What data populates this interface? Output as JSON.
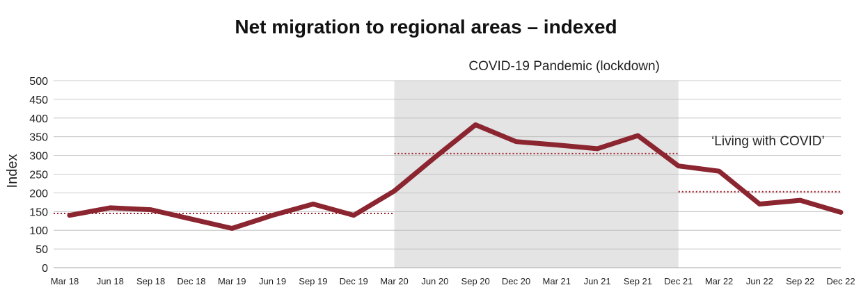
{
  "chart_data": {
    "type": "line",
    "title": "Net migration to regional areas – indexed",
    "xlabel": "",
    "ylabel": "Index",
    "ylim": [
      0,
      500
    ],
    "yticks": [
      0,
      50,
      100,
      150,
      200,
      250,
      300,
      350,
      400,
      450,
      500
    ],
    "grid": true,
    "categories": [
      "Mar 18",
      "Jun 18",
      "Sep 18",
      "Dec 18",
      "Mar 19",
      "Jun 19",
      "Sep 19",
      "Dec 19",
      "Mar 20",
      "Jun 20",
      "Sep 20",
      "Dec 20",
      "Mar 21",
      "Jun 21",
      "Sep 21",
      "Dec 21",
      "Mar 22",
      "Jun 22",
      "Sep 22",
      "Dec 22"
    ],
    "series": [
      {
        "values": [
          140,
          160,
          155,
          130,
          105,
          140,
          170,
          140,
          205,
          295,
          382,
          337,
          328,
          318,
          353,
          272,
          258,
          170,
          180,
          148
        ],
        "color": "#8b2530"
      }
    ],
    "shaded_period": {
      "label": "COVID-19 Pandemic (lockdown)",
      "start_index": 8,
      "end_index": 15,
      "color": "#e4e4e4"
    },
    "average_lines": [
      {
        "start_index": 0,
        "end_index": 8,
        "value": 145
      },
      {
        "start_index": 8,
        "end_index": 15,
        "value": 305
      },
      {
        "start_index": 15,
        "end_index": 19,
        "value": 203
      }
    ],
    "annotations": [
      {
        "text": "‘Living with COVID’"
      }
    ],
    "average_line_color": "#a11d2a",
    "grid_color": "#b8b8b8"
  }
}
